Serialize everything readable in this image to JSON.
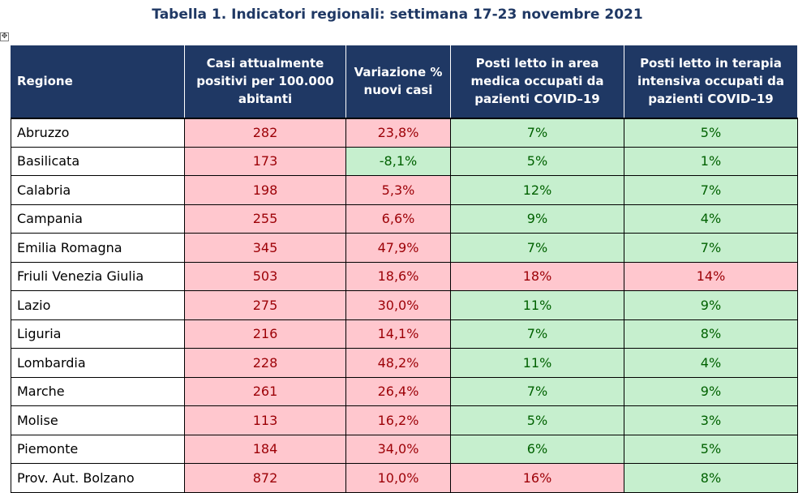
{
  "title": "Tabella 1. Indicatori regionali: settimana 17-23 novembre 2021",
  "anchor_icon": "move-anchor-icon",
  "colors": {
    "header_bg": "#1f3864",
    "bad_bg": "#ffc7ce",
    "bad_text": "#9c0006",
    "good_bg": "#c6efce",
    "good_text": "#006100"
  },
  "table": {
    "headers": [
      "Regione",
      "Casi attualmente positivi per 100.000 abitanti",
      "Variazione % nuovi casi",
      "Posti letto in area medica occupati da pazienti COVID–19",
      "Posti letto in terapia intensiva occupati da pazienti COVID–19"
    ],
    "rows": [
      {
        "region": "Abruzzo",
        "cases": "282",
        "variation": "23,8%",
        "medical": "7%",
        "icu": "5%"
      },
      {
        "region": "Basilicata",
        "cases": "173",
        "variation": "-8,1%",
        "medical": "5%",
        "icu": "1%"
      },
      {
        "region": "Calabria",
        "cases": "198",
        "variation": "5,3%",
        "medical": "12%",
        "icu": "7%"
      },
      {
        "region": "Campania",
        "cases": "255",
        "variation": "6,6%",
        "medical": "9%",
        "icu": "4%"
      },
      {
        "region": "Emilia Romagna",
        "cases": "345",
        "variation": "47,9%",
        "medical": "7%",
        "icu": "7%"
      },
      {
        "region": "Friuli Venezia Giulia",
        "cases": "503",
        "variation": "18,6%",
        "medical": "18%",
        "icu": "14%"
      },
      {
        "region": "Lazio",
        "cases": "275",
        "variation": "30,0%",
        "medical": "11%",
        "icu": "9%"
      },
      {
        "region": "Liguria",
        "cases": "216",
        "variation": "14,1%",
        "medical": "7%",
        "icu": "8%"
      },
      {
        "region": "Lombardia",
        "cases": "228",
        "variation": "48,2%",
        "medical": "11%",
        "icu": "4%"
      },
      {
        "region": "Marche",
        "cases": "261",
        "variation": "26,4%",
        "medical": "7%",
        "icu": "9%"
      },
      {
        "region": "Molise",
        "cases": "113",
        "variation": "16,2%",
        "medical": "5%",
        "icu": "3%"
      },
      {
        "region": "Piemonte",
        "cases": "184",
        "variation": "34,0%",
        "medical": "6%",
        "icu": "5%"
      },
      {
        "region": "Prov. Aut. Bolzano",
        "cases": "872",
        "variation": "10,0%",
        "medical": "16%",
        "icu": "8%"
      }
    ],
    "cell_status": [
      [
        "bad",
        "bad",
        "good",
        "good"
      ],
      [
        "bad",
        "good",
        "good",
        "good"
      ],
      [
        "bad",
        "bad",
        "good",
        "good"
      ],
      [
        "bad",
        "bad",
        "good",
        "good"
      ],
      [
        "bad",
        "bad",
        "good",
        "good"
      ],
      [
        "bad",
        "bad",
        "bad",
        "bad"
      ],
      [
        "bad",
        "bad",
        "good",
        "good"
      ],
      [
        "bad",
        "bad",
        "good",
        "good"
      ],
      [
        "bad",
        "bad",
        "good",
        "good"
      ],
      [
        "bad",
        "bad",
        "good",
        "good"
      ],
      [
        "bad",
        "bad",
        "good",
        "good"
      ],
      [
        "bad",
        "bad",
        "good",
        "good"
      ],
      [
        "bad",
        "bad",
        "bad",
        "good"
      ]
    ]
  }
}
